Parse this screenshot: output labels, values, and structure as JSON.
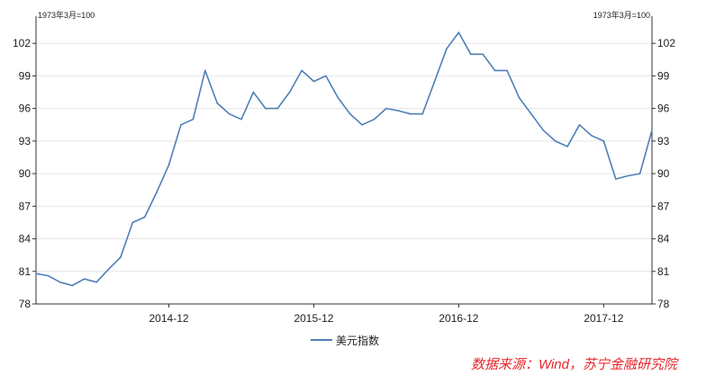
{
  "chart_data": {
    "type": "line",
    "unit_left": "1973年3月=100",
    "unit_right": "1973年3月=100",
    "ylim": [
      78,
      104.5
    ],
    "y_ticks": [
      78,
      81,
      84,
      87,
      90,
      93,
      96,
      99,
      102
    ],
    "x_ticks": [
      "2014-12",
      "2015-12",
      "2016-12",
      "2017-12"
    ],
    "grid": true,
    "legend_position": "bottom",
    "series": [
      {
        "name": "美元指数",
        "color": "#4f7fb6",
        "x": [
          "2014-01",
          "2014-02",
          "2014-03",
          "2014-04",
          "2014-05",
          "2014-06",
          "2014-07",
          "2014-08",
          "2014-09",
          "2014-10",
          "2014-11",
          "2014-12",
          "2015-01",
          "2015-02",
          "2015-03",
          "2015-04",
          "2015-05",
          "2015-06",
          "2015-07",
          "2015-08",
          "2015-09",
          "2015-10",
          "2015-11",
          "2015-12",
          "2016-01",
          "2016-02",
          "2016-03",
          "2016-04",
          "2016-05",
          "2016-06",
          "2016-07",
          "2016-08",
          "2016-09",
          "2016-10",
          "2016-11",
          "2016-12",
          "2017-01",
          "2017-02",
          "2017-03",
          "2017-04",
          "2017-05",
          "2017-06",
          "2017-07",
          "2017-08",
          "2017-09",
          "2017-10",
          "2017-11",
          "2017-12",
          "2018-01",
          "2018-02",
          "2018-03",
          "2018-04"
        ],
        "values": [
          80.8,
          80.6,
          80.0,
          79.7,
          80.3,
          80.0,
          81.2,
          82.3,
          85.5,
          86.0,
          88.3,
          90.8,
          94.5,
          95.0,
          99.5,
          96.5,
          95.5,
          95.0,
          97.5,
          96.0,
          96.0,
          97.5,
          99.5,
          98.5,
          99.0,
          97.0,
          95.5,
          94.5,
          95.0,
          96.0,
          95.8,
          95.5,
          95.5,
          98.5,
          101.5,
          103.0,
          101.0,
          101.0,
          99.5,
          99.5,
          97.0,
          95.5,
          94.0,
          93.0,
          92.5,
          94.5,
          93.5,
          93.0,
          89.5,
          89.8,
          90.0,
          94.0
        ]
      }
    ],
    "legend": [
      "美元指数"
    ]
  },
  "source_note": "数据来源：Wind，苏宁金融研究院"
}
